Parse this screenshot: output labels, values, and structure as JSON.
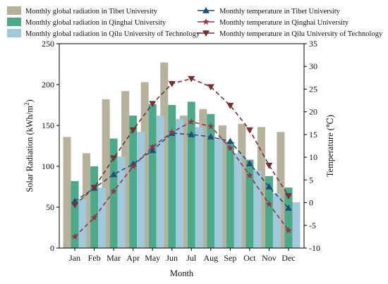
{
  "chart_data": {
    "type": "bar+line",
    "title": "",
    "categories": [
      "Jan",
      "Feb",
      "Mar",
      "Apr",
      "May",
      "Jun",
      "Jul",
      "Aug",
      "Sep",
      "Oct",
      "Nov",
      "Dec"
    ],
    "xlabel": "Month",
    "ylabel_left_prefix": "Solar Radiation (kWh/m",
    "ylabel_left_sup": "2",
    "ylabel_left_suffix": ")",
    "ylabel_right": "Temperature (℃)",
    "ylim_left": [
      0,
      250
    ],
    "yticks_left": [
      "0",
      "50",
      "100",
      "150",
      "200",
      "250"
    ],
    "ylim_right": [
      -10,
      35
    ],
    "yticks_right": [
      "-10",
      "-5",
      "0",
      "5",
      "10",
      "15",
      "20",
      "25",
      "30",
      "35"
    ],
    "grid": false,
    "legend_placement": "top",
    "bar_series": [
      {
        "name": "Monthly global radiation in Tibet University",
        "color": "#b5b19b",
        "values": [
          136,
          116,
          182,
          192,
          203,
          227,
          162,
          170,
          150,
          152,
          148,
          142
        ]
      },
      {
        "name": "Monthly global radiation in Qinghai University",
        "color": "#4aaa8a",
        "values": [
          82,
          100,
          134,
          162,
          176,
          175,
          179,
          164,
          130,
          108,
          88,
          74
        ]
      },
      {
        "name": "Monthly global radiation in Qilu University of Technology",
        "color": "#a2c8dc",
        "values": [
          60,
          74,
          112,
          142,
          162,
          158,
          148,
          133,
          116,
          95,
          67,
          56
        ]
      }
    ],
    "line_series": [
      {
        "name": "Monthly temperature in Tibet University",
        "color": "#1f4e79",
        "marker": "triangle-up",
        "values": [
          0.3,
          3.2,
          6.2,
          8.5,
          11.5,
          15.3,
          15.0,
          14.5,
          13.5,
          8.6,
          3.5,
          -1.2
        ]
      },
      {
        "name": "Monthly temperature in Qinghai University",
        "color": "#9b2f45",
        "marker": "star",
        "values": [
          -7.5,
          -3.3,
          2.5,
          8.0,
          12.3,
          15.5,
          17.8,
          16.8,
          12.0,
          6.0,
          -0.3,
          -6.1
        ]
      },
      {
        "name": "Monthly temperature in Qilu University of Technology",
        "color": "#7a2e2e",
        "marker": "triangle-down",
        "values": [
          -0.5,
          3.3,
          9.8,
          16.0,
          21.8,
          26.2,
          27.3,
          25.5,
          21.4,
          16.0,
          8.2,
          1.5
        ]
      }
    ]
  }
}
